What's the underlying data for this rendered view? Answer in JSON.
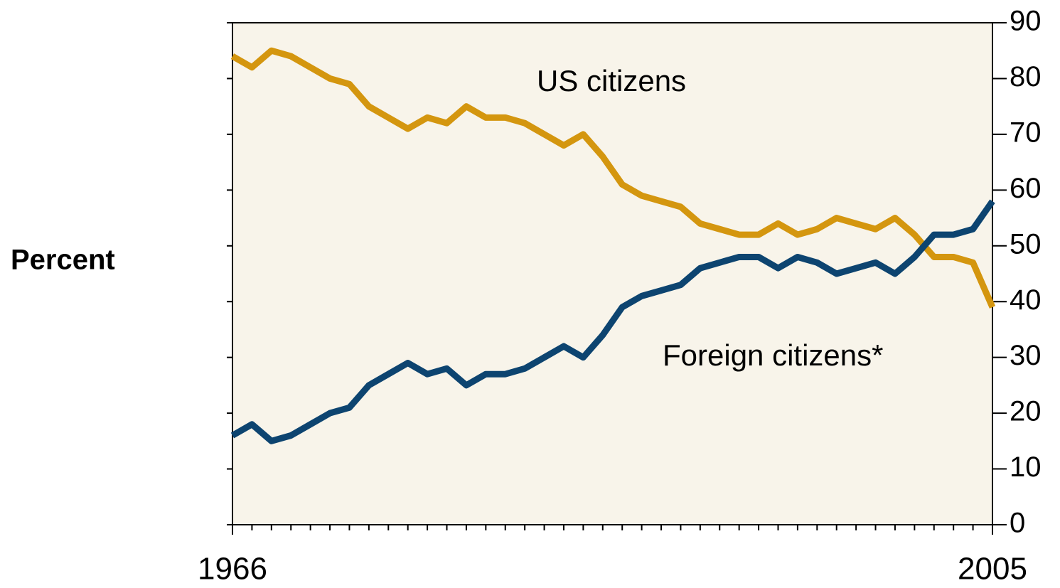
{
  "chart_data": {
    "type": "line",
    "y_label": "Percent",
    "annotations": [
      "US citizens",
      "Foreign citizens*"
    ],
    "x": [
      1966,
      1967,
      1968,
      1969,
      1970,
      1971,
      1972,
      1973,
      1974,
      1975,
      1976,
      1977,
      1978,
      1979,
      1980,
      1981,
      1982,
      1983,
      1984,
      1985,
      1986,
      1987,
      1988,
      1989,
      1990,
      1991,
      1992,
      1993,
      1994,
      1995,
      1996,
      1997,
      1998,
      1999,
      2000,
      2001,
      2002,
      2003,
      2004,
      2005
    ],
    "series": [
      {
        "name": "US citizens",
        "color": "#d4960f",
        "values": [
          84,
          82,
          85,
          84,
          82,
          80,
          79,
          75,
          73,
          71,
          73,
          72,
          75,
          73,
          73,
          72,
          70,
          68,
          70,
          66,
          61,
          59,
          58,
          57,
          54,
          53,
          52,
          52,
          54,
          52,
          53,
          55,
          54,
          53,
          55,
          52,
          48,
          48,
          47,
          39
        ]
      },
      {
        "name": "Foreign citizens*",
        "color": "#0d4470",
        "values": [
          16,
          18,
          15,
          16,
          18,
          20,
          21,
          25,
          27,
          29,
          27,
          28,
          25,
          27,
          27,
          28,
          30,
          32,
          30,
          34,
          39,
          41,
          42,
          43,
          46,
          47,
          48,
          48,
          46,
          48,
          47,
          45,
          46,
          47,
          45,
          48,
          52,
          52,
          53,
          58
        ]
      }
    ],
    "xlim": [
      1966,
      2005
    ],
    "xticks": [
      1966,
      2005
    ],
    "ylim": [
      0,
      90
    ],
    "yticks": [
      0,
      10,
      20,
      30,
      40,
      50,
      60,
      70,
      80,
      90
    ],
    "background": "#f8f4ea"
  }
}
